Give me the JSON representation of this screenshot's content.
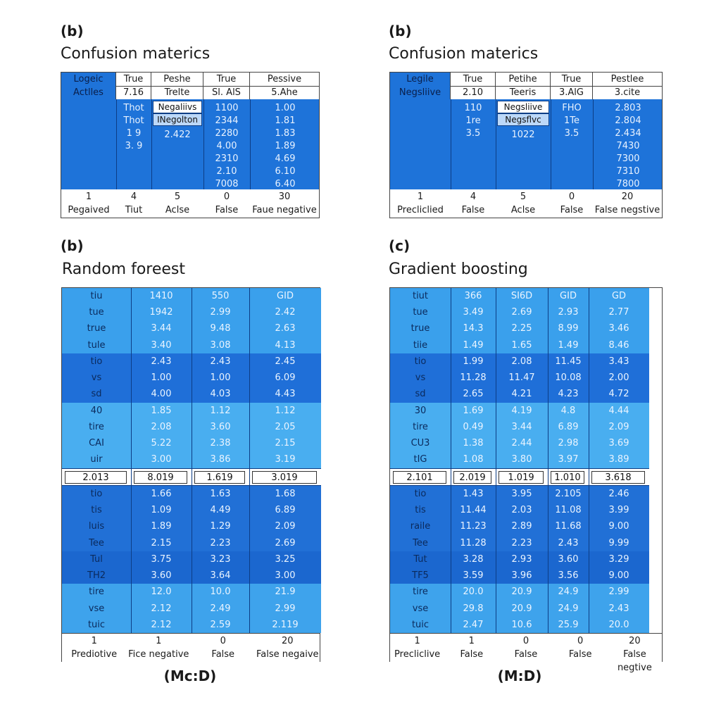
{
  "panels": [
    {
      "label": "(b)",
      "title": "Confusion materics",
      "header_row1": [
        "Logeic",
        "True",
        "Peshe",
        "True",
        "Pessive"
      ],
      "header_row2": [
        "Actlles",
        "7.16",
        "Trelte",
        "Sl. AlS",
        "5.Ahe"
      ],
      "col2": [
        "Thot",
        "Thot",
        "1 9",
        "3. 9"
      ],
      "col3_boxes": [
        "Negaliivs",
        "INegolton"
      ],
      "col3": [
        "2.422"
      ],
      "col4": [
        "1100",
        "2344",
        "2280",
        "4.00",
        "2310",
        "2.10",
        "7008"
      ],
      "col5": [
        "1.00",
        "1.81",
        "1.83",
        "1.89",
        "4.69",
        "6.10",
        "6.40"
      ],
      "footer_nums": [
        "1",
        "4",
        "5",
        "0",
        "30"
      ],
      "footer_labels": [
        "Pegaived",
        "Tiut",
        "Aclse",
        "False",
        "Faue negative"
      ]
    },
    {
      "label": "(b)",
      "title": "Confusion materics",
      "header_row1": [
        "Legile",
        "True",
        "Petihe",
        "True",
        "Pestlee"
      ],
      "header_row2": [
        "Negsliive",
        "2.10",
        "Teeris",
        "3.AlG",
        "3.cite"
      ],
      "col2": [
        "110",
        "1re",
        "3.5"
      ],
      "col3_boxes": [
        "Negsliive",
        "Negsflvc"
      ],
      "col3": [
        "1022"
      ],
      "col4": [
        "FHO",
        "1Te",
        "3.5"
      ],
      "col5": [
        "2.803",
        "2.804",
        "2.434",
        "7430",
        "7300",
        "7310",
        "7800"
      ],
      "footer_nums": [
        "1",
        "4",
        "5",
        "0",
        "20"
      ],
      "footer_labels": [
        "Precliclied",
        "False",
        "Aclse",
        "False",
        "False negstive"
      ]
    }
  ],
  "tables": [
    {
      "label": "(b)",
      "title": "Random foreest",
      "caption": "(Mc:D)",
      "rows_a": [
        [
          "tiu",
          "1410",
          "550",
          "GID"
        ],
        [
          "tue",
          "1942",
          "2.99",
          "2.42"
        ],
        [
          "true",
          "3.44",
          "9.48",
          "2.63"
        ],
        [
          "tule",
          "3.40",
          "3.08",
          "4.13"
        ],
        [
          "tio",
          "2.43",
          "2.43",
          "2.45"
        ],
        [
          "vs",
          "1.00",
          "1.00",
          "6.09"
        ],
        [
          "sd",
          "4.00",
          "4.03",
          "4.43"
        ],
        [
          "40",
          "1.85",
          "1.12",
          "1.12"
        ],
        [
          "tire",
          "2.08",
          "3.60",
          "2.05"
        ],
        [
          "CAI",
          "5.22",
          "2.38",
          "2.15"
        ],
        [
          "uir",
          "3.00",
          "3.86",
          "3.19"
        ]
      ],
      "white_row": [
        "2.013",
        "8.019",
        "1.619",
        "3.019"
      ],
      "rows_b": [
        [
          "tio",
          "1.66",
          "1.63",
          "1.68"
        ],
        [
          "tis",
          "1.09",
          "4.49",
          "6.89"
        ],
        [
          "luis",
          "1.89",
          "1.29",
          "2.09"
        ],
        [
          "Tee",
          "2.15",
          "2.23",
          "2.69"
        ],
        [
          "Tul",
          "3.75",
          "3.23",
          "3.25"
        ],
        [
          "TH2",
          "3.60",
          "3.64",
          "3.00"
        ],
        [
          "tire",
          "12.0",
          "10.0",
          "21.9"
        ],
        [
          "vse",
          "2.12",
          "2.49",
          "2.99"
        ],
        [
          "tuic",
          "2.12",
          "2.59",
          "2.119"
        ]
      ],
      "footer_nums": [
        "1",
        "1",
        "0",
        "20"
      ],
      "footer_labels": [
        "Prediotive",
        "Fice negative",
        "False",
        "False negaive"
      ]
    },
    {
      "label": "(c)",
      "title": "Gradient boosting",
      "caption": "(M:D)",
      "rows_a": [
        [
          "tiut",
          "366",
          "SI6D",
          "GID",
          "GD"
        ],
        [
          "tue",
          "3.49",
          "2.69",
          "2.93",
          "2.77"
        ],
        [
          "true",
          "14.3",
          "2.25",
          "8.99",
          "3.46"
        ],
        [
          "tiie",
          "1.49",
          "1.65",
          "1.49",
          "8.46"
        ],
        [
          "tio",
          "1.99",
          "2.08",
          "11.45",
          "3.43"
        ],
        [
          "vs",
          "11.28",
          "11.47",
          "10.08",
          "2.00"
        ],
        [
          "sd",
          "2.65",
          "4.21",
          "4.23",
          "4.72"
        ],
        [
          "30",
          "1.69",
          "4.19",
          "4.8",
          "4.44"
        ],
        [
          "tire",
          "0.49",
          "3.44",
          "6.89",
          "2.09"
        ],
        [
          "CU3",
          "1.38",
          "2.44",
          "2.98",
          "3.69"
        ],
        [
          "tIG",
          "1.08",
          "3.80",
          "3.97",
          "3.89"
        ]
      ],
      "white_row": [
        "2.101",
        "2.019",
        "1.019",
        "1.010",
        "3.618"
      ],
      "rows_b": [
        [
          "tio",
          "1.43",
          "3.95",
          "2.105",
          "2.46"
        ],
        [
          "tis",
          "11.44",
          "2.03",
          "11.08",
          "3.99"
        ],
        [
          "raile",
          "11.23",
          "2.89",
          "11.68",
          "9.00"
        ],
        [
          "Tee",
          "11.28",
          "2.23",
          "2.43",
          "9.99"
        ],
        [
          "Tut",
          "3.28",
          "2.93",
          "3.60",
          "3.29"
        ],
        [
          "TF5",
          "3.59",
          "3.96",
          "3.56",
          "9.00"
        ],
        [
          "tire",
          "20.0",
          "20.9",
          "24.9",
          "2.99"
        ],
        [
          "vse",
          "29.8",
          "20.9",
          "24.9",
          "2.43"
        ],
        [
          "tuic",
          "2.47",
          "10.6",
          "25.9",
          "20.0"
        ]
      ],
      "footer_nums": [
        "1",
        "1",
        "0",
        "0",
        "20"
      ],
      "footer_labels": [
        "Precliclive",
        "False",
        "False",
        "False",
        "False negtive"
      ]
    }
  ],
  "chart_data": [
    {
      "type": "table",
      "title": "Confusion materics",
      "rows": [
        [
          "Logeic",
          "True",
          "Peshe",
          "True",
          "Pessive"
        ],
        [
          "Actlles",
          "7.16",
          "Trelte",
          "Sl. AlS",
          "5.Ahe"
        ]
      ]
    },
    {
      "type": "table",
      "title": "Confusion materics",
      "rows": [
        [
          "Legile",
          "True",
          "Petihe",
          "True",
          "Pestlee"
        ],
        [
          "Negsliive",
          "2.10",
          "Teeris",
          "3.AlG",
          "3.cite"
        ]
      ]
    },
    {
      "type": "table",
      "title": "Random foreest"
    },
    {
      "type": "table",
      "title": "Gradient boosting"
    }
  ]
}
